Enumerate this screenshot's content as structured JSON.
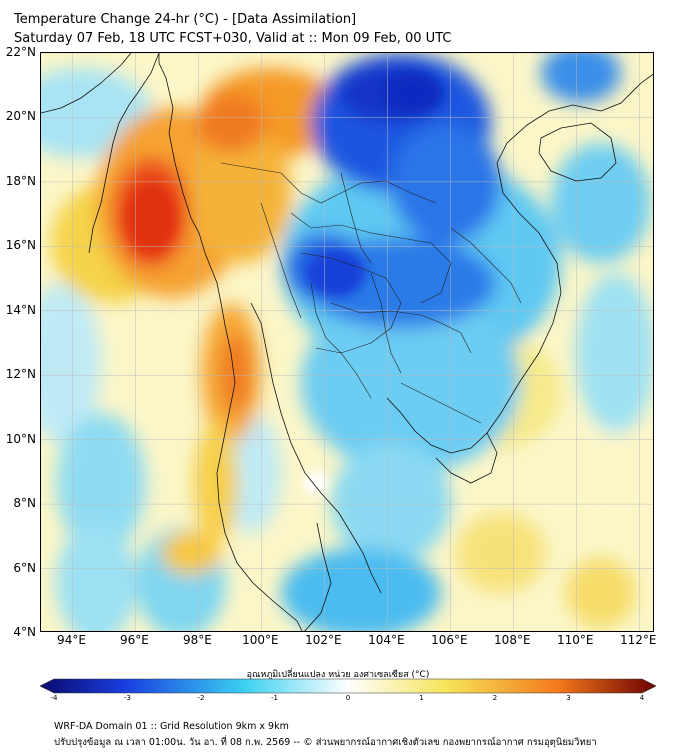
{
  "header": {
    "title": "Temperature Change 24-hr (°C) - [Data Assimilation]",
    "subtitle": "Saturday 07 Feb, 18 UTC FCST+030, Valid at :: Mon 09 Feb, 00 UTC"
  },
  "map": {
    "lat_labels": [
      "22°N",
      "20°N",
      "18°N",
      "16°N",
      "14°N",
      "12°N",
      "10°N",
      "8°N",
      "6°N",
      "4°N"
    ],
    "lon_labels": [
      "94°E",
      "96°E",
      "98°E",
      "100°E",
      "102°E",
      "104°E",
      "106°E",
      "108°E",
      "110°E",
      "112°E"
    ],
    "lat_range": [
      4,
      22
    ],
    "lon_range": [
      93,
      112.5
    ],
    "grid": true
  },
  "colorbar": {
    "title": "อุณหภูมิเปลี่ยนแปลง หน่วย องศาเซลเซียส (°C)",
    "ticks": [
      "-4",
      "-3",
      "-2",
      "-1",
      "0",
      "1",
      "2",
      "3",
      "4"
    ],
    "range": [
      -4,
      4
    ],
    "colors": {
      "min": "#0a0a6e",
      "cold": "#1a3fe0",
      "cool": "#3ad0f0",
      "neutral": "#ffffff",
      "warm": "#f5e45a",
      "hot": "#f47a1c",
      "max": "#6b0000"
    }
  },
  "footer": {
    "line1": "WRF-DA Domain 01 :: Grid Resolution 9km x 9km",
    "line2": "ปรับปรุงข้อมูล ณ เวลา 01:00น. วัน อา. ที่ 08 ก.พ. 2569 -- © ส่วนพยากรณ์อากาศเชิงตัวเลข กองพยากรณ์อากาศ กรมอุตุนิยมวิทยา"
  }
}
